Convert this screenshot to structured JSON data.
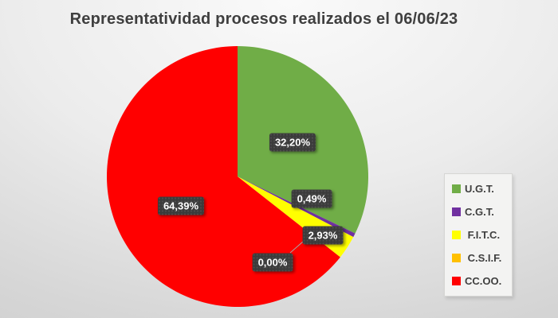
{
  "title": "Representatividad procesos realizados el 06/06/23",
  "chart_data": {
    "type": "pie",
    "title": "Representatividad procesos realizados el 06/06/23",
    "unit": "%",
    "decimal_separator": ",",
    "start_angle_deg": 0,
    "direction": "clockwise",
    "categories": [
      "U.G.T.",
      "C.G.T.",
      "F.I.T.C.",
      "C.S.I.F.",
      "CC.OO."
    ],
    "values": [
      32.2,
      0.49,
      2.93,
      0,
      64.39
    ],
    "colors": [
      "#70AD47",
      "#7030A0",
      "#FFFF00",
      "#FFC000",
      "#FF0000"
    ],
    "data_labels": [
      "32,20%",
      "0,49%",
      "2,93%",
      "0,00%",
      "64,39%"
    ],
    "legend_position": "right",
    "label_text_color": "#ffffff",
    "label_box_color": "#3b3b3b"
  },
  "legend": {
    "items": [
      {
        "label": "U.G.T.",
        "color": "#70AD47"
      },
      {
        "label": "C.G.T.",
        "color": "#7030A0"
      },
      {
        "label": " F.I.T.C.",
        "color": "#FFFF00"
      },
      {
        "label": " C.S.I.F.",
        "color": "#FFC000"
      },
      {
        "label": "CC.OO.",
        "color": "#FF0000"
      }
    ]
  }
}
